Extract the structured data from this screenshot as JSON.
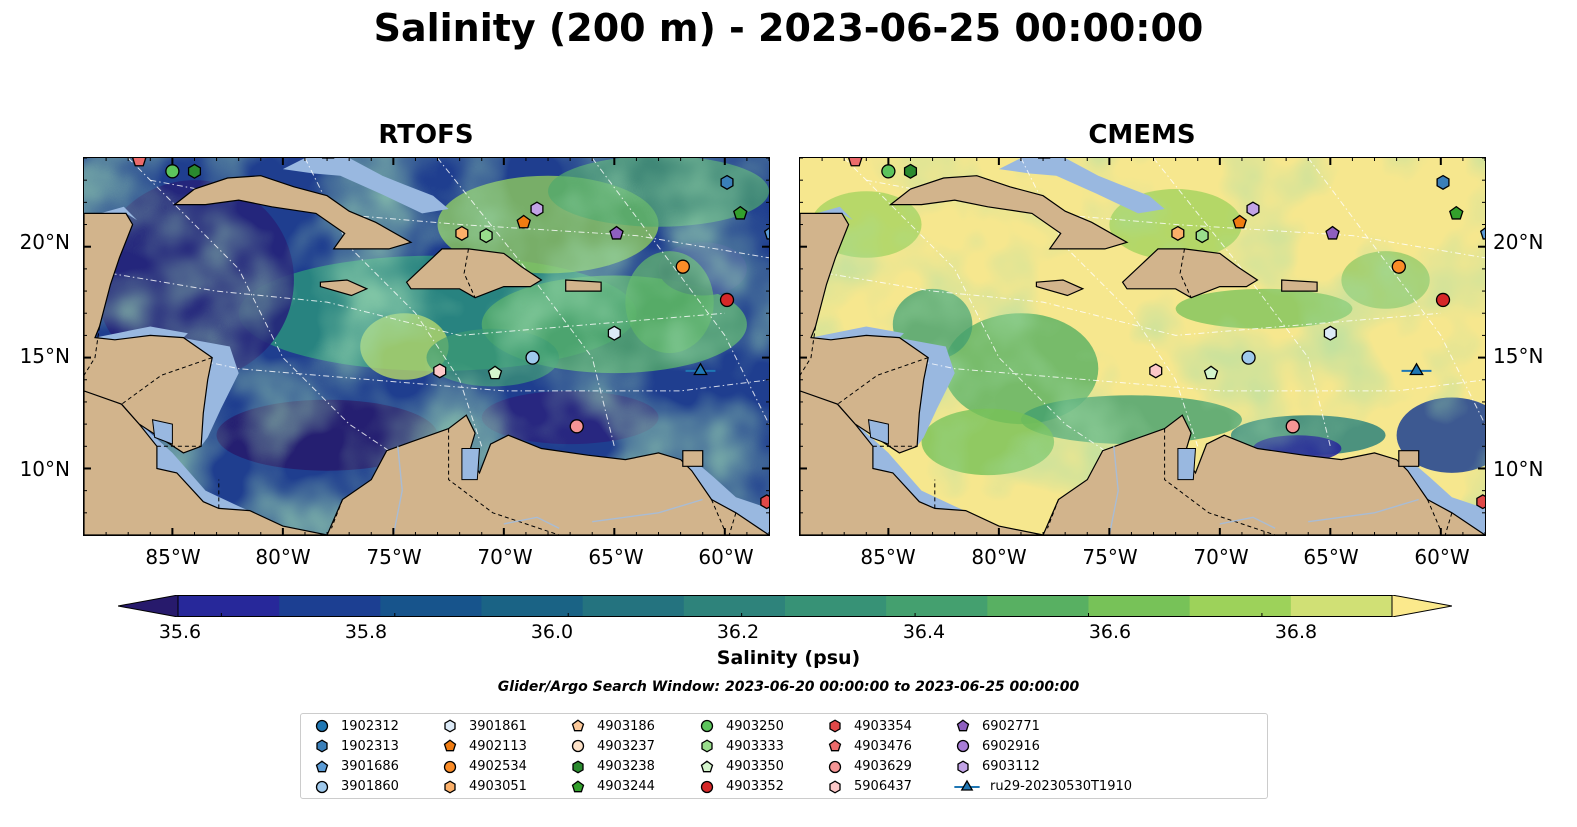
{
  "title": "Salinity (200 m) - 2023-06-25 00:00:00",
  "panels": [
    {
      "id": "rtofs",
      "title": "RTOFS",
      "scheme": "fresh"
    },
    {
      "id": "cmems",
      "title": "CMEMS",
      "scheme": "salty"
    }
  ],
  "map": {
    "lon_range": [
      -89,
      -58
    ],
    "lat_range": [
      7,
      24
    ],
    "x_ticks": [
      "85°W",
      "80°W",
      "75°W",
      "70°W",
      "65°W",
      "60°W"
    ],
    "x_tick_values": [
      -85,
      -80,
      -75,
      -70,
      -65,
      -60
    ],
    "y_ticks": [
      "20°N",
      "15°N",
      "10°N"
    ],
    "y_tick_values": [
      20,
      15,
      10
    ],
    "colors": {
      "land": "#d2b48c",
      "shelf": "#99b8e0",
      "river": "#a9bcd4"
    }
  },
  "colorbar": {
    "label": "Salinity (psu)",
    "ticks": [
      "35.6",
      "35.8",
      "36.0",
      "36.2",
      "36.4",
      "36.6",
      "36.8"
    ],
    "tick_values": [
      35.6,
      35.8,
      36.0,
      36.2,
      36.4,
      36.6,
      36.8
    ],
    "range": [
      35.55,
      36.95
    ],
    "colors": [
      "#271a6c",
      "#27289a",
      "#1c3f92",
      "#17548c",
      "#1a6385",
      "#24737f",
      "#2e837b",
      "#379276",
      "#44a06f",
      "#58b062",
      "#77c258",
      "#9dd25a",
      "#d0e075",
      "#fbe98c"
    ]
  },
  "search_window": "Glider/Argo Search Window: 2023-06-20 00:00:00 to 2023-06-25 00:00:00",
  "legend": [
    {
      "label": "1902312",
      "marker": "circle",
      "color": "#1f77b4"
    },
    {
      "label": "1902313",
      "marker": "hexagon",
      "color": "#3a7fb9"
    },
    {
      "label": "3901686",
      "marker": "pentagon",
      "color": "#5b9bd5"
    },
    {
      "label": "3901860",
      "marker": "circle",
      "color": "#9fc9ec"
    },
    {
      "label": "3901861",
      "marker": "hexagon",
      "color": "#dceaf7"
    },
    {
      "label": "4902113",
      "marker": "pentagon",
      "color": "#f07c12"
    },
    {
      "label": "4902534",
      "marker": "circle",
      "color": "#fa8c28"
    },
    {
      "label": "4903051",
      "marker": "hexagon",
      "color": "#fbb06a"
    },
    {
      "label": "4903186",
      "marker": "pentagon",
      "color": "#fcc99a"
    },
    {
      "label": "4903237",
      "marker": "circle",
      "color": "#fde2c8"
    },
    {
      "label": "4903238",
      "marker": "hexagon",
      "color": "#2a8a2e"
    },
    {
      "label": "4903244",
      "marker": "pentagon",
      "color": "#33a02c"
    },
    {
      "label": "4903250",
      "marker": "circle",
      "color": "#5cc45c"
    },
    {
      "label": "4903333",
      "marker": "hexagon",
      "color": "#99dd8c"
    },
    {
      "label": "4903350",
      "marker": "pentagon",
      "color": "#d4f5cc"
    },
    {
      "label": "4903352",
      "marker": "circle",
      "color": "#d62728"
    },
    {
      "label": "4903354",
      "marker": "hexagon",
      "color": "#e04848"
    },
    {
      "label": "4903476",
      "marker": "pentagon",
      "color": "#ec6b6b"
    },
    {
      "label": "4903629",
      "marker": "circle",
      "color": "#f59595"
    },
    {
      "label": "5906437",
      "marker": "hexagon",
      "color": "#fcc8c8"
    },
    {
      "label": "6902771",
      "marker": "pentagon",
      "color": "#8e5fbf"
    },
    {
      "label": "6902916",
      "marker": "circle",
      "color": "#a87dd6"
    },
    {
      "label": "6903112",
      "marker": "hexagon",
      "color": "#c2a3e6"
    },
    {
      "label": "ru29-20230530T1910",
      "marker": "triangle-line",
      "color": "#1f77b4"
    }
  ],
  "observations": [
    {
      "id": "4903476",
      "lon": -86.5,
      "lat": 23.9
    },
    {
      "id": "4903250",
      "lon": -85.0,
      "lat": 23.4
    },
    {
      "id": "4903238",
      "lon": -84.0,
      "lat": 23.4
    },
    {
      "id": "1902313",
      "lon": -59.9,
      "lat": 22.9
    },
    {
      "id": "4903244",
      "lon": -59.3,
      "lat": 21.5
    },
    {
      "id": "3901686",
      "lon": -57.9,
      "lat": 20.6
    },
    {
      "id": "6903112",
      "lon": -68.5,
      "lat": 21.7
    },
    {
      "id": "4902113",
      "lon": -69.1,
      "lat": 21.1
    },
    {
      "id": "4903051",
      "lon": -71.9,
      "lat": 20.6
    },
    {
      "id": "4903333",
      "lon": -70.8,
      "lat": 20.5
    },
    {
      "id": "6902771",
      "lon": -64.9,
      "lat": 20.6
    },
    {
      "id": "4902534",
      "lon": -61.9,
      "lat": 19.1
    },
    {
      "id": "4903352",
      "lon": -59.9,
      "lat": 17.6
    },
    {
      "id": "3901861",
      "lon": -65.0,
      "lat": 16.1
    },
    {
      "id": "3901860",
      "lon": -68.7,
      "lat": 15.0
    },
    {
      "id": "5906437",
      "lon": -72.9,
      "lat": 14.4
    },
    {
      "id": "4903350",
      "lon": -70.4,
      "lat": 14.3
    },
    {
      "id": "4903629",
      "lon": -66.7,
      "lat": 11.9
    },
    {
      "id": "4903354",
      "lon": -58.1,
      "lat": 8.5
    },
    {
      "id": "ru29-20230530T1910",
      "lon": -61.1,
      "lat": 14.4
    }
  ]
}
